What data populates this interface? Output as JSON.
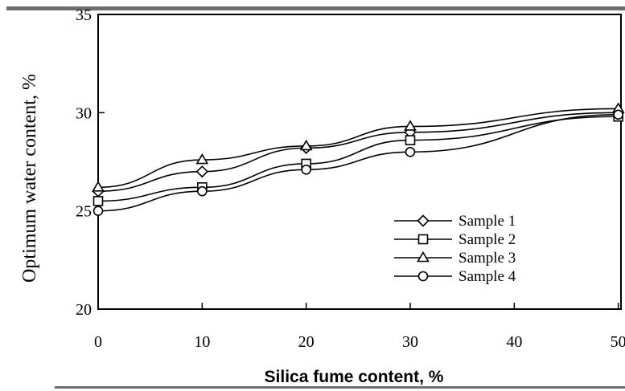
{
  "chart_data": {
    "type": "line",
    "xlabel": "Silica fume content, %",
    "ylabel": "Optimum water content, %",
    "xlim": [
      0,
      50
    ],
    "ylim": [
      20,
      35
    ],
    "xticks": [
      0,
      10,
      20,
      30,
      40,
      50
    ],
    "yticks": [
      20,
      25,
      30,
      35
    ],
    "x_tick_labels": [
      "0",
      "10",
      "20",
      "30",
      "40",
      "50"
    ],
    "y_tick_labels": [
      "20",
      "25",
      "30",
      "35"
    ],
    "grid": false,
    "legend_position": "lower-right",
    "series": [
      {
        "name": "Sample 1",
        "marker": "diamond",
        "x": [
          0,
          10,
          20,
          30,
          50
        ],
        "y": [
          26.0,
          27.0,
          28.2,
          29.0,
          30.0
        ]
      },
      {
        "name": "Sample 2",
        "marker": "square",
        "x": [
          0,
          10,
          20,
          30,
          50
        ],
        "y": [
          25.5,
          26.2,
          27.4,
          28.6,
          29.8
        ]
      },
      {
        "name": "Sample 3",
        "marker": "triangle",
        "x": [
          0,
          10,
          20,
          30,
          50
        ],
        "y": [
          26.2,
          27.6,
          28.3,
          29.3,
          30.2
        ]
      },
      {
        "name": "Sample 4",
        "marker": "circle",
        "x": [
          0,
          10,
          20,
          30,
          50
        ],
        "y": [
          25.0,
          26.0,
          27.1,
          28.0,
          29.9
        ]
      }
    ]
  }
}
